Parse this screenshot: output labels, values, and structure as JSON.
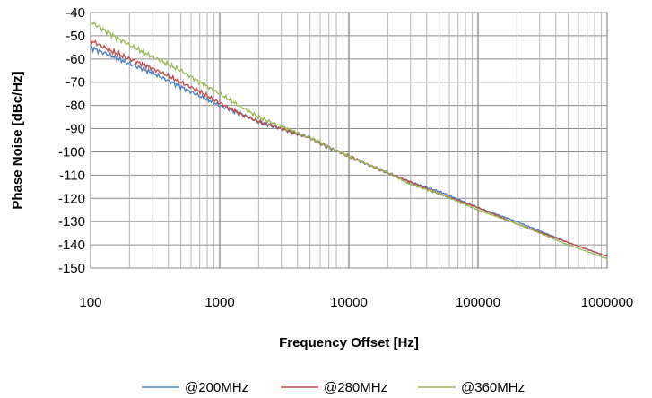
{
  "chart_data": {
    "type": "line",
    "title": "",
    "xlabel": "Frequency Offset [Hz]",
    "ylabel": "Phase Noise [dBc/Hz]",
    "x_scale": "log",
    "xlim": [
      100,
      1000000
    ],
    "ylim": [
      -150,
      -40
    ],
    "x_ticks": [
      "100",
      "1000",
      "10000",
      "100000",
      "1000000"
    ],
    "y_ticks": [
      "-40",
      "-50",
      "-60",
      "-70",
      "-80",
      "-90",
      "-100",
      "-110",
      "-120",
      "-130",
      "-140",
      "-150"
    ],
    "grid": true,
    "legend_position": "bottom",
    "x": [
      100,
      150,
      200,
      300,
      500,
      700,
      1000,
      1500,
      2000,
      3000,
      5000,
      7000,
      10000,
      20000,
      30000,
      50000,
      100000,
      200000,
      500000,
      1000000
    ],
    "series": [
      {
        "name": "@200MHz",
        "color": "#4a7ebb",
        "values": [
          -55,
          -59,
          -62,
          -66,
          -72,
          -76,
          -80,
          -84,
          -87,
          -90,
          -94,
          -98,
          -102,
          -109,
          -113,
          -117,
          -124,
          -130,
          -139,
          -145
        ]
      },
      {
        "name": "@280MHz",
        "color": "#be4b48",
        "values": [
          -52,
          -57,
          -60,
          -64,
          -70,
          -74,
          -79,
          -84,
          -87,
          -90,
          -94,
          -98,
          -102,
          -109,
          -113,
          -118,
          -124,
          -131,
          -139,
          -145
        ]
      },
      {
        "name": "@360MHz",
        "color": "#98b954",
        "values": [
          -44,
          -50,
          -54,
          -59,
          -65,
          -70,
          -75,
          -81,
          -85,
          -89,
          -94,
          -98,
          -102,
          -109,
          -114,
          -118,
          -125,
          -131,
          -140,
          -146
        ]
      }
    ]
  }
}
